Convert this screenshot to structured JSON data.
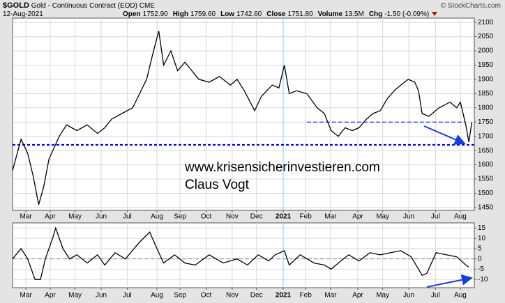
{
  "header": {
    "symbol": "$GOLD",
    "name": "Gold - Continuous Contract (EOD)",
    "exchange": "CME",
    "date": "12-Aug-2021",
    "copyright": "© StockCharts.com",
    "quote": [
      {
        "label": "Open",
        "value": "1752.90"
      },
      {
        "label": "High",
        "value": "1759.60"
      },
      {
        "label": "Low",
        "value": "1742.60"
      },
      {
        "label": "Close",
        "value": "1751.80"
      },
      {
        "label": "Volume",
        "value": "13.5M"
      },
      {
        "label": "Chg",
        "value": "-1.50 (-0.09%)"
      }
    ]
  },
  "chart_data": [
    {
      "type": "line",
      "color": "#000000",
      "grid": true,
      "x": [
        0,
        1.4,
        2.5,
        3.4,
        4.3,
        5.1,
        6.0,
        7.7,
        8.9,
        10.6,
        12.3,
        14.0,
        15.2,
        16.3,
        18.0,
        19.8,
        22.1,
        23.0,
        24.1,
        24.9,
        26.1,
        27.2,
        28.4,
        30.7,
        32.4,
        34.1,
        35.9,
        37.0,
        38.2,
        39.9,
        41.0,
        42.8,
        43.9,
        44.8,
        45.6,
        46.8,
        48.5,
        50.2,
        51.4,
        52.5,
        53.7,
        54.8,
        56.0,
        57.1,
        58.3,
        59.4,
        60.6,
        61.7,
        62.9,
        64.0,
        65.2,
        66.3,
        66.9,
        67.5,
        68.6,
        70.3,
        72.1,
        73.2,
        73.8,
        74.7,
        75.2,
        75.7
      ],
      "values": [
        1580,
        1690,
        1640,
        1560,
        1460,
        1520,
        1620,
        1700,
        1740,
        1720,
        1740,
        1710,
        1730,
        1760,
        1780,
        1800,
        1900,
        1980,
        2070,
        1950,
        2000,
        1930,
        1960,
        1900,
        1890,
        1910,
        1880,
        1900,
        1860,
        1790,
        1840,
        1880,
        1870,
        1950,
        1850,
        1860,
        1850,
        1800,
        1780,
        1720,
        1700,
        1730,
        1720,
        1730,
        1760,
        1780,
        1790,
        1830,
        1860,
        1880,
        1900,
        1890,
        1860,
        1780,
        1770,
        1800,
        1820,
        1800,
        1820,
        1740,
        1680,
        1750
      ],
      "xlim": [
        0,
        76.1
      ],
      "ylim": [
        1440,
        2115
      ],
      "yticks": [
        1450,
        1500,
        1550,
        1600,
        1650,
        1700,
        1750,
        1800,
        1850,
        1900,
        1950,
        2000,
        2050,
        2100
      ],
      "xticks": [
        {
          "value": 2.2,
          "label": "Mar"
        },
        {
          "value": 6.2,
          "label": "Apr"
        },
        {
          "value": 10.3,
          "label": "May"
        },
        {
          "value": 14.6,
          "label": "Jun"
        },
        {
          "value": 18.9,
          "label": "Jul"
        },
        {
          "value": 23.8,
          "label": "Aug"
        },
        {
          "value": 27.6,
          "label": "Sep"
        },
        {
          "value": 31.9,
          "label": "Oct"
        },
        {
          "value": 36.2,
          "label": "Nov"
        },
        {
          "value": 40.2,
          "label": "Dec"
        },
        {
          "value": 44.6,
          "label": "2021"
        },
        {
          "value": 48.3,
          "label": "Feb"
        },
        {
          "value": 52.4,
          "label": "Mar"
        },
        {
          "value": 56.9,
          "label": "Apr"
        },
        {
          "value": 61.0,
          "label": "May"
        },
        {
          "value": 65.3,
          "label": "Jun"
        },
        {
          "value": 69.7,
          "label": "Jul"
        },
        {
          "value": 73.8,
          "label": "Aug"
        }
      ],
      "hlines": [
        {
          "value": 1670,
          "color": "#0000cc",
          "x": [
            0,
            76.1
          ]
        },
        {
          "value": 1750,
          "color": "#0000cc",
          "x": [
            48.5,
            74.5
          ]
        }
      ],
      "annotations": [
        "www.krisensicherinvestieren.com",
        "Claus Vogt"
      ]
    },
    {
      "type": "line",
      "color": "#000000",
      "grid": true,
      "x": [
        0,
        1.4,
        2.5,
        3.7,
        4.6,
        5.4,
        6.6,
        7.1,
        8.3,
        9.4,
        10.6,
        12.3,
        14.0,
        15.2,
        16.9,
        18.6,
        20.9,
        22.6,
        23.8,
        24.9,
        26.7,
        28.4,
        30.1,
        32.4,
        34.7,
        37.0,
        38.7,
        40.5,
        42.2,
        43.3,
        44.8,
        45.6,
        47.4,
        49.7,
        51.4,
        52.5,
        53.7,
        55.4,
        57.1,
        58.9,
        60.6,
        62.3,
        64.0,
        65.7,
        66.9,
        67.5,
        68.3,
        69.8,
        71.5,
        73.2,
        74.7,
        75.2
      ],
      "values": [
        0,
        5,
        0,
        -10,
        -10,
        0,
        10,
        15,
        5,
        0,
        2,
        -2,
        2,
        -3,
        3,
        0,
        8,
        13,
        5,
        -2,
        2,
        -2,
        -3,
        2,
        -2,
        0,
        -3,
        2,
        -1,
        2,
        4,
        -3,
        2,
        -2,
        -3,
        -5,
        -2,
        2,
        -1,
        3,
        2,
        3,
        4,
        1,
        -5,
        -8,
        -7,
        3,
        2,
        1,
        -3,
        -4
      ],
      "xlim": [
        0,
        76.1
      ],
      "ylim": [
        -14,
        17.5
      ],
      "yticks": [
        -10,
        -5,
        0,
        5,
        10,
        15
      ],
      "xticks": [
        {
          "value": 2.2,
          "label": "Mar"
        },
        {
          "value": 6.2,
          "label": "Apr"
        },
        {
          "value": 10.3,
          "label": "May"
        },
        {
          "value": 14.6,
          "label": "Jun"
        },
        {
          "value": 18.9,
          "label": "Jul"
        },
        {
          "value": 23.8,
          "label": "Aug"
        },
        {
          "value": 27.6,
          "label": "Sep"
        },
        {
          "value": 31.9,
          "label": "Oct"
        },
        {
          "value": 36.2,
          "label": "Nov"
        },
        {
          "value": 40.2,
          "label": "Dec"
        },
        {
          "value": 44.6,
          "label": "2021"
        },
        {
          "value": 48.3,
          "label": "Feb"
        },
        {
          "value": 52.4,
          "label": "Mar"
        },
        {
          "value": 56.9,
          "label": "Apr"
        },
        {
          "value": 61.0,
          "label": "May"
        },
        {
          "value": 65.3,
          "label": "Jun"
        },
        {
          "value": 69.7,
          "label": "Jul"
        },
        {
          "value": 73.8,
          "label": "Aug"
        }
      ],
      "hlines": [
        {
          "value": 0,
          "color": "#888888",
          "x": [
            0,
            76.1
          ]
        }
      ]
    }
  ]
}
